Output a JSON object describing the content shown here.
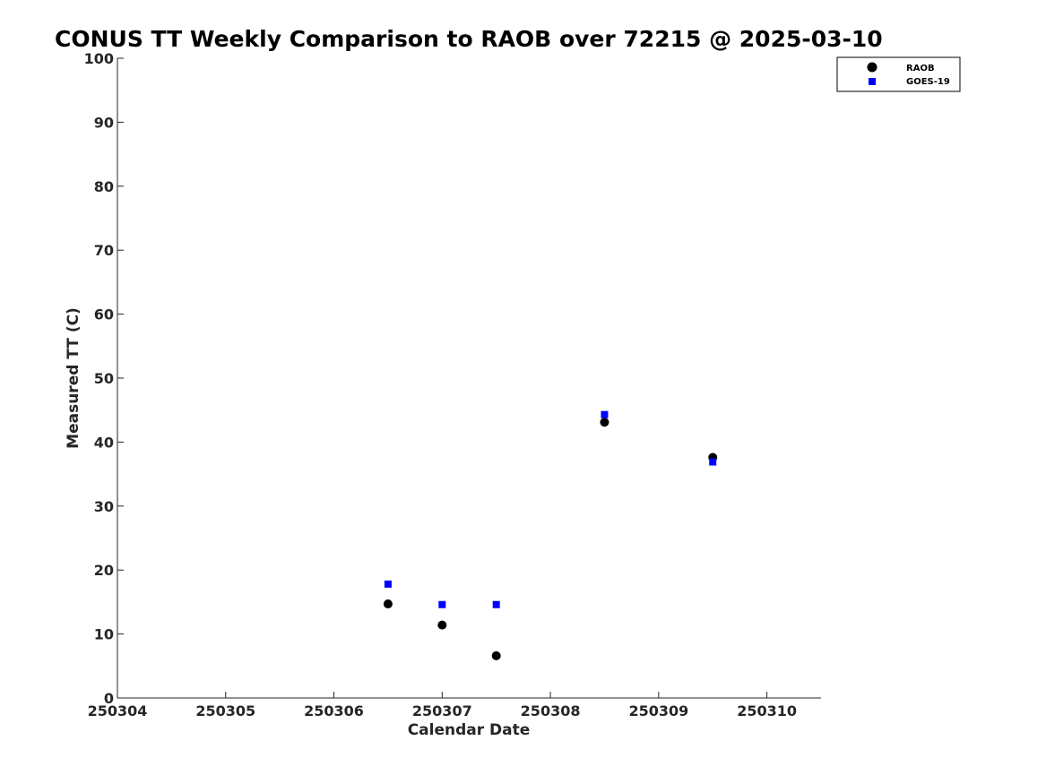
{
  "chart_data": {
    "type": "scatter",
    "title": "CONUS TT Weekly Comparison to RAOB over 72215 @ 2025-03-10",
    "xlabel": "Calendar Date",
    "ylabel": "Measured TT (C)",
    "xlim": [
      0,
      6.5
    ],
    "ylim": [
      0,
      100
    ],
    "x_ticks": [
      {
        "value": 0,
        "label": "250304"
      },
      {
        "value": 1,
        "label": "250305"
      },
      {
        "value": 2,
        "label": "250306"
      },
      {
        "value": 3,
        "label": "250307"
      },
      {
        "value": 4,
        "label": "250308"
      },
      {
        "value": 5,
        "label": "250309"
      },
      {
        "value": 6,
        "label": "250310"
      }
    ],
    "y_ticks": [
      0,
      10,
      20,
      30,
      40,
      50,
      60,
      70,
      80,
      90,
      100
    ],
    "grid": false,
    "legend_position": "top-right",
    "series": [
      {
        "name": "RAOB",
        "marker": "circle",
        "color": "#000000",
        "x": [
          2.5,
          3.0,
          3.5,
          4.5,
          5.5
        ],
        "y": [
          14.7,
          11.4,
          6.6,
          43.1,
          37.6
        ]
      },
      {
        "name": "GOES-19",
        "marker": "square",
        "color": "#0000ff",
        "x": [
          2.5,
          3.0,
          3.5,
          4.5,
          5.5
        ],
        "y": [
          17.8,
          14.6,
          14.6,
          44.3,
          36.9
        ]
      }
    ]
  }
}
